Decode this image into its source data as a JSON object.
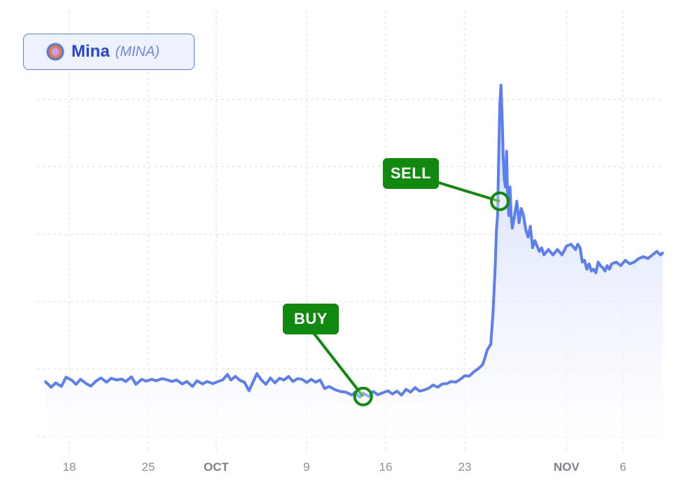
{
  "legend": {
    "name": "Mina",
    "symbol": "(MINA)",
    "icon": "mina-coin-icon"
  },
  "colors": {
    "line": "#5b7ff0",
    "fill_top": "#c9d5fb",
    "fill_bottom": "#ffffff",
    "signal": "#0f8a0f",
    "grid": "#d9dce3"
  },
  "chart_data": {
    "type": "area",
    "title": "",
    "xlabel": "",
    "ylabel": "",
    "x_axis_ticks": [
      {
        "label": "18",
        "day": 0,
        "major": false
      },
      {
        "label": "25",
        "day": 7,
        "major": false
      },
      {
        "label": "OCT",
        "day": 13,
        "major": true
      },
      {
        "label": "9",
        "day": 21,
        "major": false
      },
      {
        "label": "16",
        "day": 28,
        "major": false
      },
      {
        "label": "23",
        "day": 35,
        "major": false
      },
      {
        "label": "NOV",
        "day": 44,
        "major": true
      },
      {
        "label": "6",
        "day": 49,
        "major": false
      }
    ],
    "y_axis_ticks_shown": false,
    "grid": true,
    "xlim_days": [
      -2.2,
      52.5
    ],
    "ylim": [
      0,
      100
    ],
    "series": [
      {
        "points": [
          [
            -2.1,
            15.5
          ],
          [
            -1.6,
            14.0
          ],
          [
            -1.2,
            15.2
          ],
          [
            -0.7,
            14.2
          ],
          [
            -0.3,
            16.8
          ],
          [
            0.2,
            16.0
          ],
          [
            0.6,
            14.8
          ],
          [
            1.0,
            16.2
          ],
          [
            1.5,
            15.0
          ],
          [
            1.9,
            14.3
          ],
          [
            2.4,
            15.8
          ],
          [
            2.8,
            16.6
          ],
          [
            3.3,
            15.4
          ],
          [
            3.7,
            16.5
          ],
          [
            4.2,
            16.0
          ],
          [
            4.6,
            16.3
          ],
          [
            5.0,
            15.6
          ],
          [
            5.5,
            16.9
          ],
          [
            5.9,
            14.8
          ],
          [
            6.4,
            16.2
          ],
          [
            6.8,
            15.7
          ],
          [
            7.3,
            16.2
          ],
          [
            7.7,
            15.8
          ],
          [
            8.2,
            16.4
          ],
          [
            8.6,
            16.1
          ],
          [
            9.1,
            15.6
          ],
          [
            9.5,
            16.0
          ],
          [
            10.0,
            14.9
          ],
          [
            10.4,
            15.6
          ],
          [
            10.9,
            14.2
          ],
          [
            11.3,
            15.8
          ],
          [
            11.8,
            14.9
          ],
          [
            12.2,
            15.6
          ],
          [
            12.7,
            15.0
          ],
          [
            13.1,
            15.5
          ],
          [
            13.6,
            16.1
          ],
          [
            14.0,
            17.6
          ],
          [
            14.3,
            16.0
          ],
          [
            14.7,
            17.0
          ],
          [
            15.1,
            15.9
          ],
          [
            15.5,
            15.4
          ],
          [
            15.9,
            13.0
          ],
          [
            16.2,
            15.0
          ],
          [
            16.6,
            17.8
          ],
          [
            17.0,
            16.0
          ],
          [
            17.4,
            14.8
          ],
          [
            17.8,
            16.6
          ],
          [
            18.2,
            15.2
          ],
          [
            18.6,
            16.5
          ],
          [
            19.0,
            16.0
          ],
          [
            19.4,
            17.0
          ],
          [
            19.8,
            15.6
          ],
          [
            20.2,
            16.4
          ],
          [
            20.6,
            16.2
          ],
          [
            21.0,
            15.3
          ],
          [
            21.4,
            16.2
          ],
          [
            21.8,
            15.4
          ],
          [
            22.2,
            16.0
          ],
          [
            22.6,
            13.6
          ],
          [
            23.0,
            14.2
          ],
          [
            23.5,
            13.3
          ],
          [
            24.0,
            12.8
          ],
          [
            24.5,
            12.6
          ],
          [
            25.0,
            11.8
          ],
          [
            25.3,
            12.6
          ],
          [
            25.7,
            11.2
          ],
          [
            26.0,
            12.3
          ],
          [
            26.5,
            11.4
          ],
          [
            26.9,
            12.8
          ],
          [
            27.3,
            11.9
          ],
          [
            27.8,
            12.5
          ],
          [
            28.2,
            13.0
          ],
          [
            28.6,
            12.1
          ],
          [
            29.0,
            12.9
          ],
          [
            29.4,
            11.8
          ],
          [
            29.8,
            13.4
          ],
          [
            30.2,
            12.6
          ],
          [
            30.6,
            13.9
          ],
          [
            31.0,
            12.9
          ],
          [
            31.4,
            13.2
          ],
          [
            31.8,
            13.7
          ],
          [
            32.2,
            14.6
          ],
          [
            32.6,
            14.0
          ],
          [
            33.0,
            14.9
          ],
          [
            33.4,
            15.0
          ],
          [
            33.8,
            15.6
          ],
          [
            34.2,
            15.4
          ],
          [
            34.6,
            16.2
          ],
          [
            35.0,
            17.2
          ],
          [
            35.4,
            17.1
          ],
          [
            35.8,
            18.3
          ],
          [
            36.2,
            19.2
          ],
          [
            36.6,
            20.4
          ],
          [
            37.0,
            24.5
          ],
          [
            37.3,
            26.0
          ],
          [
            37.5,
            35.0
          ],
          [
            37.7,
            48.5
          ],
          [
            37.8,
            58.0
          ],
          [
            37.9,
            62.0
          ],
          [
            38.0,
            78.0
          ],
          [
            38.1,
            93.0
          ],
          [
            38.2,
            98.5
          ],
          [
            38.3,
            90.0
          ],
          [
            38.4,
            78.0
          ],
          [
            38.5,
            72.0
          ],
          [
            38.6,
            70.0
          ],
          [
            38.7,
            80.0
          ],
          [
            38.8,
            66.0
          ],
          [
            38.9,
            62.0
          ],
          [
            39.0,
            70.0
          ],
          [
            39.1,
            62.0
          ],
          [
            39.2,
            58.5
          ],
          [
            39.4,
            62.0
          ],
          [
            39.6,
            66.0
          ],
          [
            39.8,
            60.0
          ],
          [
            40.0,
            64.0
          ],
          [
            40.2,
            62.0
          ],
          [
            40.4,
            58.0
          ],
          [
            40.6,
            56.0
          ],
          [
            40.8,
            59.0
          ],
          [
            41.0,
            53.0
          ],
          [
            41.2,
            55.0
          ],
          [
            41.4,
            53.5
          ],
          [
            41.6,
            52.0
          ],
          [
            41.8,
            53.0
          ],
          [
            42.0,
            51.0
          ],
          [
            42.4,
            52.5
          ],
          [
            42.8,
            51.0
          ],
          [
            43.2,
            52.5
          ],
          [
            43.6,
            51.0
          ],
          [
            44.0,
            53.5
          ],
          [
            44.4,
            54.0
          ],
          [
            44.8,
            52.5
          ],
          [
            45.0,
            54.0
          ],
          [
            45.2,
            53.0
          ],
          [
            45.4,
            49.0
          ],
          [
            45.6,
            49.5
          ],
          [
            45.8,
            47.0
          ],
          [
            46.0,
            48.5
          ],
          [
            46.2,
            46.5
          ],
          [
            46.4,
            47.0
          ],
          [
            46.6,
            46.0
          ],
          [
            46.8,
            49.0
          ],
          [
            47.0,
            48.0
          ],
          [
            47.2,
            47.5
          ],
          [
            47.4,
            46.5
          ],
          [
            47.6,
            48.0
          ],
          [
            47.8,
            47.0
          ],
          [
            48.0,
            48.5
          ],
          [
            48.4,
            49.0
          ],
          [
            48.8,
            48.0
          ],
          [
            49.2,
            49.5
          ],
          [
            49.6,
            48.5
          ],
          [
            50.0,
            49.0
          ],
          [
            50.4,
            50.0
          ],
          [
            50.8,
            50.5
          ],
          [
            51.2,
            50.0
          ],
          [
            51.6,
            51.0
          ],
          [
            52.0,
            52.0
          ],
          [
            52.3,
            51.0
          ],
          [
            52.5,
            51.5
          ]
        ]
      }
    ],
    "annotations": [
      {
        "label": "BUY",
        "day": 26.0,
        "value": 11.4
      },
      {
        "label": "SELL",
        "day": 38.1,
        "value": 66.0
      }
    ]
  }
}
